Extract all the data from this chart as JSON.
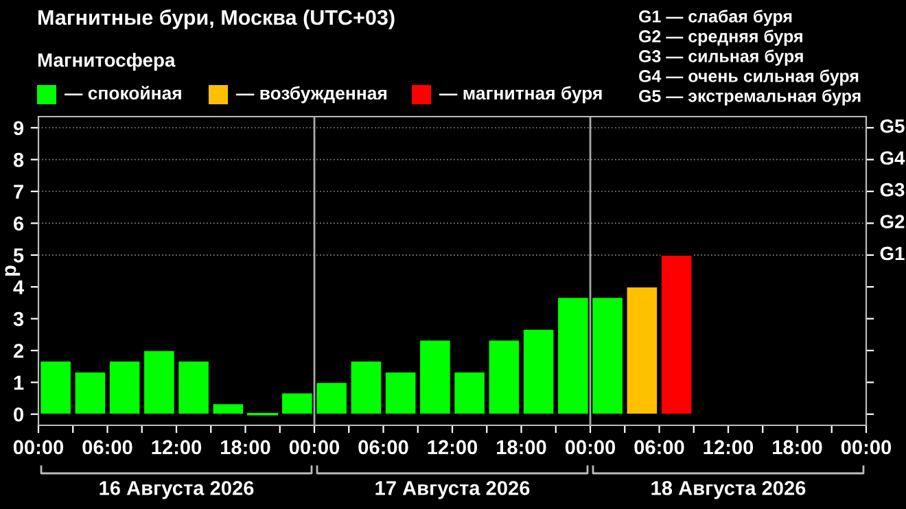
{
  "chart_data": {
    "type": "bar",
    "title": "Магнитные бури, Москва (UTC+03)",
    "ylabel": "p",
    "legend_title": "Магнитосфера",
    "legend": "top",
    "x": [
      "2026-08-16T01:30",
      "2026-08-16T04:30",
      "2026-08-16T07:30",
      "2026-08-16T10:30",
      "2026-08-16T13:30",
      "2026-08-16T16:30",
      "2026-08-16T19:30",
      "2026-08-16T22:30",
      "2026-08-17T01:30",
      "2026-08-17T04:30",
      "2026-08-17T07:30",
      "2026-08-17T10:30",
      "2026-08-17T13:30",
      "2026-08-17T16:30",
      "2026-08-17T19:30",
      "2026-08-17T22:30",
      "2026-08-18T01:30",
      "2026-08-18T04:30",
      "2026-08-18T07:30"
    ],
    "series": [
      {
        "name": "— спокойная",
        "color": "#00ff00",
        "values": [
          1.67,
          1.33,
          1.67,
          2,
          1.67,
          0.33,
          0,
          0.67,
          1,
          1.67,
          1.33,
          2.33,
          1.33,
          2.33,
          2.67,
          3.67,
          3.67,
          null,
          null
        ]
      },
      {
        "name": "— возбужденная",
        "color": "#ffc000",
        "values": [
          null,
          null,
          null,
          null,
          null,
          null,
          null,
          null,
          null,
          null,
          null,
          null,
          null,
          null,
          null,
          null,
          null,
          4,
          null
        ]
      },
      {
        "name": "— магнитная буря",
        "color": "#ff0000",
        "values": [
          null,
          null,
          null,
          null,
          null,
          null,
          null,
          null,
          null,
          null,
          null,
          null,
          null,
          null,
          null,
          null,
          null,
          null,
          5
        ]
      }
    ],
    "xlim": [
      "2026-08-16T00:00",
      "2026-08-19T00:00"
    ],
    "xticks": [
      {
        "value": "2026-08-16T00:00",
        "label": "00:00"
      },
      {
        "value": "2026-08-16T03:00",
        "label": null
      },
      {
        "value": "2026-08-16T06:00",
        "label": "06:00"
      },
      {
        "value": "2026-08-16T09:00",
        "label": null
      },
      {
        "value": "2026-08-16T12:00",
        "label": "12:00"
      },
      {
        "value": "2026-08-16T15:00",
        "label": null
      },
      {
        "value": "2026-08-16T18:00",
        "label": "18:00"
      },
      {
        "value": "2026-08-16T21:00",
        "label": null
      },
      {
        "value": "2026-08-17T00:00",
        "label": "00:00"
      },
      {
        "value": "2026-08-17T03:00",
        "label": null
      },
      {
        "value": "2026-08-17T06:00",
        "label": "06:00"
      },
      {
        "value": "2026-08-17T09:00",
        "label": null
      },
      {
        "value": "2026-08-17T12:00",
        "label": "12:00"
      },
      {
        "value": "2026-08-17T15:00",
        "label": null
      },
      {
        "value": "2026-08-17T18:00",
        "label": "18:00"
      },
      {
        "value": "2026-08-17T21:00",
        "label": null
      },
      {
        "value": "2026-08-18T00:00",
        "label": "00:00"
      },
      {
        "value": "2026-08-18T03:00",
        "label": null
      },
      {
        "value": "2026-08-18T06:00",
        "label": "06:00"
      },
      {
        "value": "2026-08-18T09:00",
        "label": null
      },
      {
        "value": "2026-08-18T12:00",
        "label": "12:00"
      },
      {
        "value": "2026-08-18T15:00",
        "label": null
      },
      {
        "value": "2026-08-18T18:00",
        "label": "18:00"
      },
      {
        "value": "2026-08-18T21:00",
        "label": null
      },
      {
        "value": "2026-08-19T00:00",
        "label": "00:00"
      }
    ],
    "ylim": [
      -0.35,
      9.35
    ],
    "yticks": [
      0,
      1,
      2,
      3,
      4,
      5,
      6,
      7,
      8,
      9
    ],
    "ref_lines": [
      {
        "axis": "x",
        "value": "2026-08-17T00:00",
        "color": "#aaaaaa",
        "line_style": "solid"
      },
      {
        "axis": "x",
        "value": "2026-08-18T00:00",
        "color": "#aaaaaa",
        "line_style": "solid"
      },
      {
        "axis": "y",
        "value": 5,
        "label": "G1",
        "color": "#888888",
        "line_style": "dotted"
      },
      {
        "axis": "y",
        "value": 6,
        "label": "G2",
        "color": "#888888",
        "line_style": "dotted"
      },
      {
        "axis": "y",
        "value": 7,
        "label": "G3",
        "color": "#888888",
        "line_style": "dotted"
      },
      {
        "axis": "y",
        "value": 8,
        "label": "G4",
        "color": "#888888",
        "line_style": "dotted"
      },
      {
        "axis": "y",
        "value": 9,
        "label": "G5",
        "color": "#888888",
        "line_style": "dotted"
      }
    ],
    "annotations": [
      "16 Августа 2026",
      "17 Августа 2026",
      "18 Августа 2026",
      "G1 — слабая буря",
      "G2 — средняя буря",
      "G3 — сильная буря",
      "G4 — очень сильная буря",
      "G5 — экстремальная буря"
    ]
  }
}
